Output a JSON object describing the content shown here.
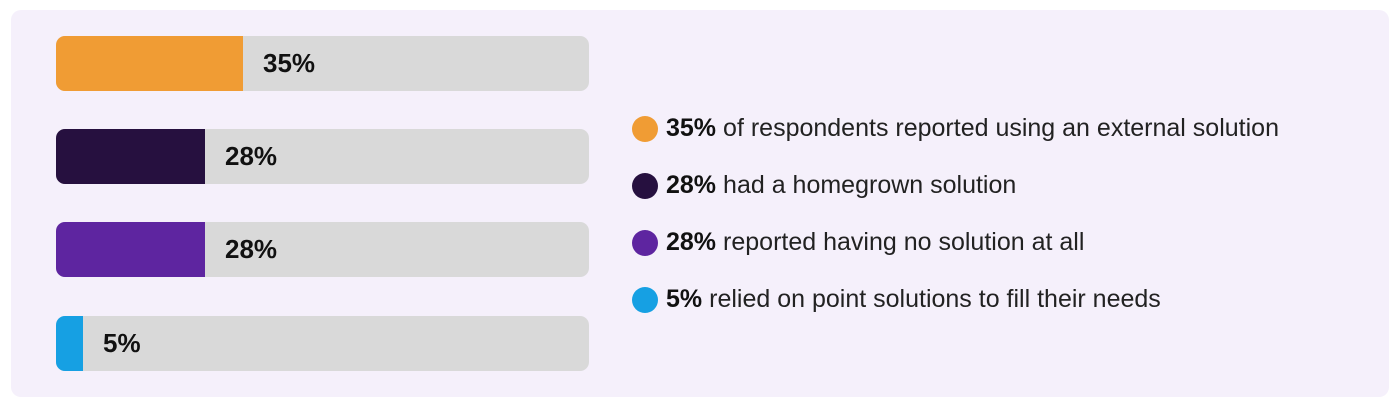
{
  "chart_data": {
    "type": "bar",
    "orientation": "horizontal",
    "unit": "%",
    "xlim": [
      0,
      100
    ],
    "grid": false,
    "legend_position": "right",
    "bars": [
      {
        "value": 35,
        "label": "35%",
        "color": "#f09c34"
      },
      {
        "value": 28,
        "label": "28%",
        "color": "#26103f"
      },
      {
        "value": 28,
        "label": "28%",
        "color": "#5e25a0"
      },
      {
        "value": 5,
        "label": "5%",
        "color": "#16a0e3"
      }
    ],
    "legend": [
      {
        "value": "35%",
        "text": "of respondents reported using an external solution",
        "color": "#f09c34"
      },
      {
        "value": "28%",
        "text": "had a homegrown solution",
        "color": "#26103f"
      },
      {
        "value": "28%",
        "text": "reported having no solution at all",
        "color": "#5e25a0"
      },
      {
        "value": "5%",
        "text": "relied on point solutions to fill their needs",
        "color": "#16a0e3"
      }
    ]
  }
}
